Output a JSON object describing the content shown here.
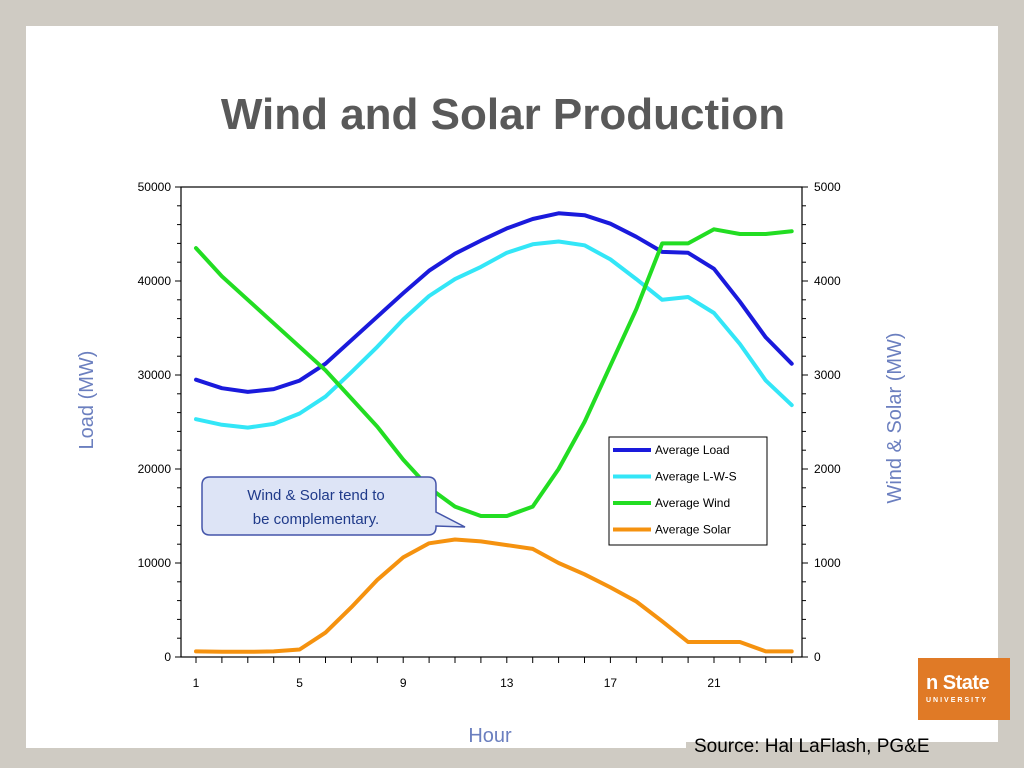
{
  "slide": {
    "title": "Wind and Solar Production",
    "source": "Source: Hal LaFlash, PG&E",
    "logo_text": "n State",
    "logo_subtext": "UNIVERSITY",
    "colors": {
      "background": "#cfcbc3",
      "title": "#595959",
      "logo": "#e07a26"
    }
  },
  "chart_data": {
    "type": "line",
    "title": "",
    "xlabel": "Hour",
    "ylabel_left": "Load (MW)",
    "ylabel_right": "Wind & Solar (MW)",
    "xlim": [
      1,
      24
    ],
    "ylim_left": [
      0,
      50000
    ],
    "ylim_right": [
      0,
      5000
    ],
    "x_ticks": [
      "1",
      "5",
      "9",
      "13",
      "17",
      "21"
    ],
    "y_ticks_left": [
      "0",
      "10000",
      "20000",
      "30000",
      "40000",
      "50000"
    ],
    "y_ticks_right": [
      "0",
      "1000",
      "2000",
      "3000",
      "4000",
      "5000"
    ],
    "grid": false,
    "legend_position": "center-right",
    "annotation": {
      "line1": "Wind & Solar tend to",
      "line2": "be complementary."
    },
    "x": [
      1,
      2,
      3,
      4,
      5,
      6,
      7,
      8,
      9,
      10,
      11,
      12,
      13,
      14,
      15,
      16,
      17,
      18,
      19,
      20,
      21,
      22,
      23,
      24
    ],
    "series": [
      {
        "name": "Average Load",
        "axis": "left",
        "color": "#1a1adc",
        "values": [
          29500,
          28600,
          28200,
          28500,
          29400,
          31200,
          33700,
          36200,
          38700,
          41100,
          42900,
          44300,
          45600,
          46600,
          47200,
          47000,
          46100,
          44700,
          43100,
          43000,
          41300,
          37800,
          34000,
          31200
        ]
      },
      {
        "name": "Average L-W-S",
        "axis": "left",
        "color": "#33e6f7",
        "values": [
          25300,
          24700,
          24400,
          24800,
          25900,
          27700,
          30300,
          33000,
          35900,
          38400,
          40200,
          41500,
          43000,
          43900,
          44200,
          43800,
          42300,
          40200,
          38000,
          38300,
          36600,
          33300,
          29400,
          26800
        ]
      },
      {
        "name": "Average Wind",
        "axis": "right",
        "color": "#22dd22",
        "values": [
          4350,
          4050,
          3800,
          3550,
          3300,
          3050,
          2750,
          2450,
          2100,
          1800,
          1600,
          1500,
          1500,
          1600,
          2000,
          2500,
          3100,
          3700,
          4400,
          4400,
          4550,
          4500,
          4500,
          4530
        ]
      },
      {
        "name": "Average Solar",
        "axis": "right",
        "color": "#f5920f",
        "values": [
          60,
          55,
          55,
          60,
          80,
          260,
          530,
          820,
          1060,
          1210,
          1250,
          1230,
          1190,
          1150,
          1000,
          880,
          740,
          590,
          380,
          160,
          160,
          160,
          60,
          60
        ]
      }
    ]
  }
}
